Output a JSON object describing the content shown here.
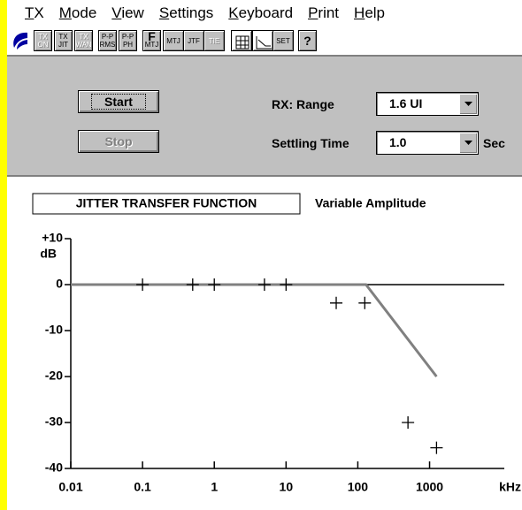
{
  "menu": [
    "TX",
    "Mode",
    "View",
    "Settings",
    "Keyboard",
    "Print",
    "Help"
  ],
  "toolbar": [
    {
      "top": "TX",
      "bottom": "ON",
      "enabled": false
    },
    {
      "top": "TX",
      "bottom": "JIT",
      "enabled": true
    },
    {
      "top": "TX",
      "bottom": "WAN",
      "enabled": false
    },
    {
      "top": "P-P",
      "bottom": "RMS",
      "enabled": true
    },
    {
      "top": "P-P",
      "bottom": "PH",
      "enabled": true
    },
    {
      "top": "F",
      "bottom": "MTJ",
      "enabled": true
    },
    {
      "top": "MTJ",
      "enabled": true
    },
    {
      "top": "JTF",
      "enabled": true
    },
    {
      "top": "TIE",
      "enabled": false
    },
    {
      "top": "SET",
      "enabled": true
    },
    {
      "top": "?",
      "enabled": true
    }
  ],
  "controls": {
    "start": "Start",
    "stop": "Stop",
    "range_label": "RX: Range",
    "range_value": "1.6 UI",
    "settling_label": "Settling Time",
    "settling_value": "1.0",
    "settling_unit": "Sec"
  },
  "chart_data": {
    "type": "line",
    "title": "JITTER TRANSFER FUNCTION",
    "subtitle": "Variable Amplitude",
    "xlabel": "kHz",
    "ylabel": "dB",
    "log_x": true,
    "xlim": [
      0.01,
      11000
    ],
    "xticks": [
      0.01,
      0.1,
      1,
      10,
      100,
      1000
    ],
    "ylim": [
      -40,
      10
    ],
    "yticks": [
      {
        "value": 10,
        "label": "+10"
      },
      0,
      -10,
      -20,
      -30,
      -40
    ],
    "series": [
      {
        "color": "#808080",
        "style": "line",
        "x": [
          0.01,
          130,
          1250
        ],
        "values": [
          0,
          0,
          -20
        ]
      },
      {
        "color": "#000000",
        "style": "plus",
        "x": [
          0.1,
          0.5,
          1,
          5,
          10,
          50,
          125,
          500,
          1250
        ],
        "values": [
          0,
          0,
          0,
          0,
          0,
          -4,
          -4,
          -30,
          -35.5
        ]
      }
    ]
  }
}
